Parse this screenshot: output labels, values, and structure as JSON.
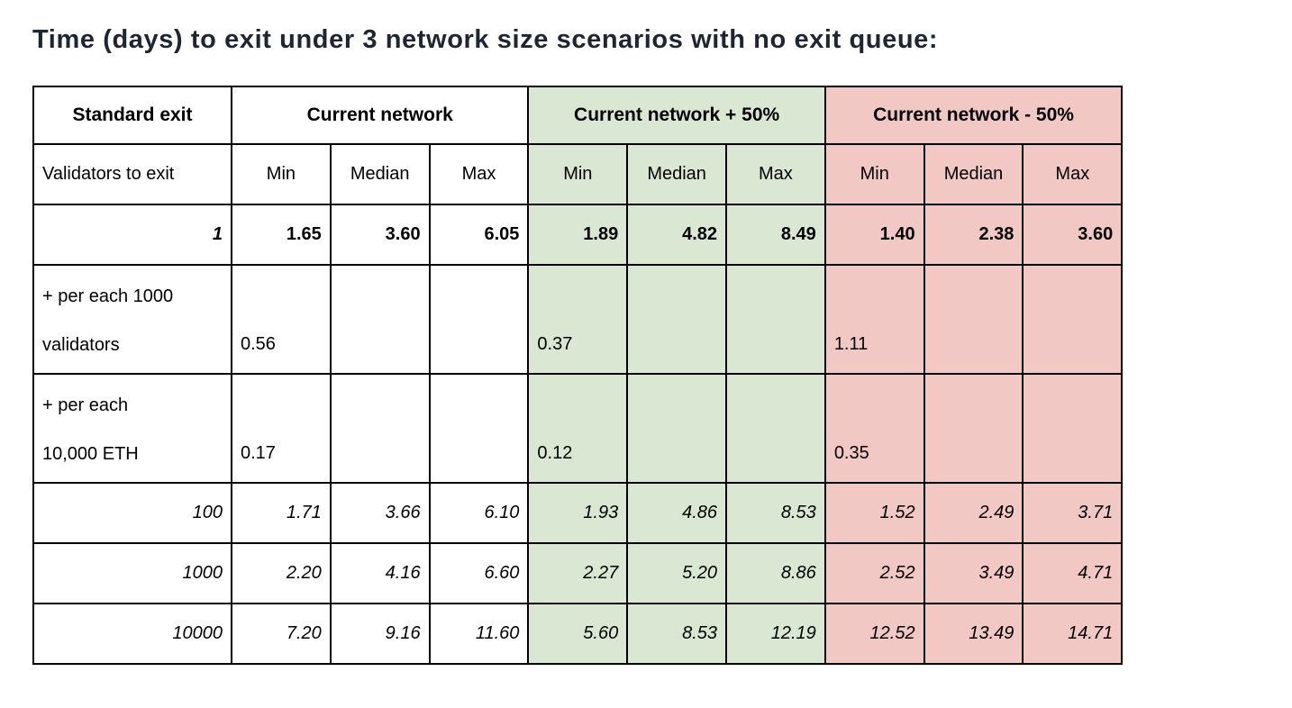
{
  "title": "Time (days) to exit under 3 network size scenarios with no exit queue:",
  "colors": {
    "scenario_plus_green": "#d9e7d3",
    "scenario_minus_red": "#f2c8c4",
    "border": "#000000",
    "title_text": "#1e2633"
  },
  "table": {
    "header_groups": [
      {
        "label": "Standard exit"
      },
      {
        "label": "Current network"
      },
      {
        "label": "Current network + 50%"
      },
      {
        "label": "Current network - 50%"
      }
    ],
    "subheader": {
      "label": "Validators to exit",
      "cols": [
        "Min",
        "Median",
        "Max",
        "Min",
        "Median",
        "Max",
        "Min",
        "Median",
        "Max"
      ]
    },
    "rows": [
      {
        "label": "1",
        "values": [
          "1.65",
          "3.60",
          "6.05",
          "1.89",
          "4.82",
          "8.49",
          "1.40",
          "2.38",
          "3.60"
        ]
      },
      {
        "label": "+ per each 1000\nvalidators",
        "values": [
          "0.56",
          "",
          "",
          "0.37",
          "",
          "",
          "1.11",
          "",
          ""
        ]
      },
      {
        "label": "+ per each\n10,000 ETH",
        "values": [
          "0.17",
          "",
          "",
          "0.12",
          "",
          "",
          "0.35",
          "",
          ""
        ]
      },
      {
        "label": "100",
        "values": [
          "1.71",
          "3.66",
          "6.10",
          "1.93",
          "4.86",
          "8.53",
          "1.52",
          "2.49",
          "3.71"
        ]
      },
      {
        "label": "1000",
        "values": [
          "2.20",
          "4.16",
          "6.60",
          "2.27",
          "5.20",
          "8.86",
          "2.52",
          "3.49",
          "4.71"
        ]
      },
      {
        "label": "10000",
        "values": [
          "7.20",
          "9.16",
          "11.60",
          "5.60",
          "8.53",
          "12.19",
          "12.52",
          "13.49",
          "14.71"
        ]
      }
    ]
  }
}
